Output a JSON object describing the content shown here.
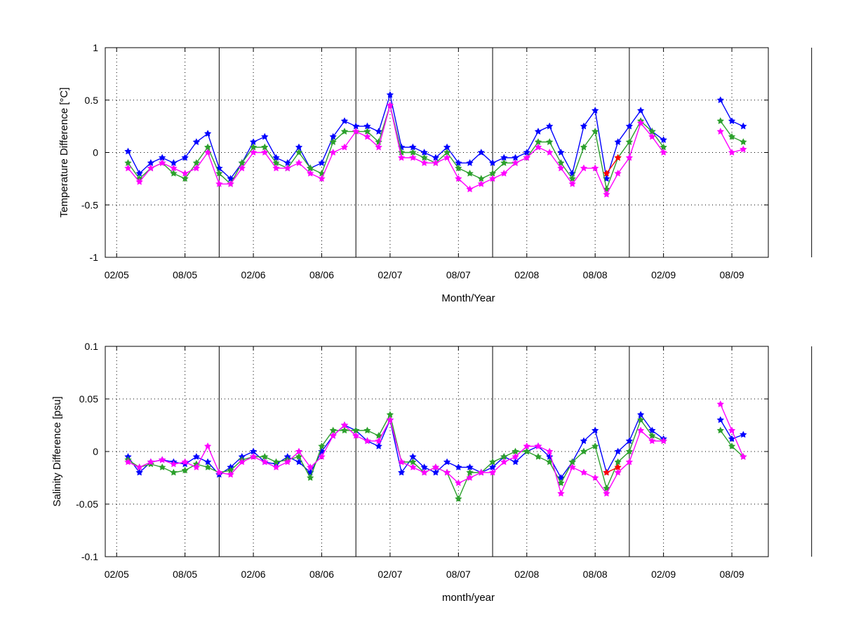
{
  "chart_data": [
    {
      "type": "line",
      "ylabel": "Temperature Difference [°C]",
      "xlabel": "Month/Year",
      "ylim": [
        -1,
        1
      ],
      "yticks": [
        "-1",
        "-0.5",
        "0",
        "0.5",
        "1"
      ],
      "xticks": [
        "02/05",
        "08/05",
        "02/06",
        "08/06",
        "02/07",
        "08/07",
        "02/08",
        "08/08",
        "02/09",
        "08/09"
      ],
      "grid": "dotted",
      "cruise_dividers": [
        "11/05",
        "11/06",
        "11/07",
        "11/08",
        "03/10"
      ],
      "x": [
        "03/05",
        "04/05",
        "05/05",
        "06/05",
        "07/05",
        "08/05",
        "09/05",
        "10/05",
        "11/05",
        "12/05",
        "01/06",
        "02/06",
        "03/06",
        "04/06",
        "05/06",
        "06/06",
        "07/06",
        "08/06",
        "09/06",
        "10/06",
        "11/06",
        "12/06",
        "01/07",
        "02/07",
        "03/07",
        "04/07",
        "05/07",
        "06/07",
        "07/07",
        "08/07",
        "09/07",
        "10/07",
        "11/07",
        "12/07",
        "01/08",
        "02/08",
        "03/08",
        "04/08",
        "05/08",
        "06/08",
        "07/08",
        "08/08",
        "09/08",
        "10/08",
        "11/08",
        "12/08",
        "01/09",
        "02/09",
        "03/09",
        "04/09",
        "05/09",
        "06/09",
        "07/09",
        "08/09",
        "09/09"
      ],
      "series": [
        {
          "color": "#0000ff",
          "marker": "star",
          "values": [
            0.01,
            -0.2,
            -0.1,
            -0.05,
            -0.1,
            -0.05,
            0.1,
            0.18,
            -0.15,
            -0.25,
            -0.1,
            0.1,
            0.15,
            -0.05,
            -0.1,
            0.05,
            -0.15,
            -0.1,
            0.15,
            0.3,
            0.25,
            0.25,
            0.2,
            0.55,
            0.05,
            0.05,
            0.0,
            -0.05,
            0.05,
            -0.1,
            -0.1,
            0.0,
            -0.1,
            -0.05,
            -0.05,
            0.0,
            0.2,
            0.25,
            0.0,
            -0.2,
            0.25,
            0.4,
            -0.25,
            0.1,
            0.25,
            0.4,
            0.2,
            0.12,
            null,
            null,
            null,
            null,
            0.5,
            0.3,
            0.25
          ]
        },
        {
          "color": "#2ca02c",
          "marker": "star",
          "values": [
            -0.1,
            -0.25,
            -0.15,
            -0.1,
            -0.2,
            -0.25,
            -0.1,
            0.05,
            -0.2,
            -0.3,
            -0.1,
            0.05,
            0.05,
            -0.1,
            -0.15,
            0.0,
            -0.15,
            -0.2,
            0.1,
            0.2,
            0.2,
            0.2,
            0.1,
            0.45,
            0.0,
            0.0,
            -0.05,
            -0.1,
            0.0,
            -0.15,
            -0.2,
            -0.25,
            -0.2,
            -0.1,
            -0.1,
            -0.05,
            0.1,
            0.1,
            -0.1,
            -0.25,
            0.05,
            0.2,
            -0.35,
            -0.05,
            0.1,
            0.3,
            0.2,
            0.05,
            null,
            null,
            null,
            null,
            0.3,
            0.15,
            0.1
          ]
        },
        {
          "color": "#ff00ff",
          "marker": "star",
          "values": [
            -0.15,
            -0.28,
            -0.15,
            -0.1,
            -0.15,
            -0.2,
            -0.15,
            0.0,
            -0.3,
            -0.3,
            -0.15,
            0.0,
            0.0,
            -0.15,
            -0.15,
            -0.1,
            -0.2,
            -0.25,
            0.0,
            0.05,
            0.2,
            0.15,
            0.05,
            0.45,
            -0.05,
            -0.05,
            -0.1,
            -0.1,
            -0.05,
            -0.25,
            -0.35,
            -0.3,
            -0.25,
            -0.2,
            -0.1,
            -0.05,
            0.05,
            0.0,
            -0.15,
            -0.3,
            -0.15,
            -0.15,
            -0.4,
            -0.2,
            -0.05,
            0.28,
            0.15,
            0.0,
            null,
            null,
            null,
            null,
            0.2,
            0.0,
            0.03
          ]
        },
        {
          "color": "#ff0000",
          "marker": "star",
          "values": [
            null,
            null,
            null,
            null,
            null,
            null,
            null,
            null,
            null,
            null,
            null,
            null,
            null,
            null,
            null,
            null,
            null,
            null,
            null,
            null,
            null,
            null,
            null,
            null,
            null,
            null,
            null,
            null,
            null,
            null,
            null,
            null,
            null,
            null,
            null,
            null,
            null,
            null,
            null,
            null,
            null,
            null,
            -0.2,
            -0.05,
            null,
            null,
            null,
            null,
            null,
            null,
            null,
            null,
            null,
            null,
            null
          ]
        }
      ]
    },
    {
      "type": "line",
      "ylabel": "Salinity Difference [psu]",
      "xlabel": "month/year",
      "ylim": [
        -0.1,
        0.1
      ],
      "yticks": [
        "-0.1",
        "-0.05",
        "0",
        "0.05",
        "0.1"
      ],
      "xticks": [
        "02/05",
        "08/05",
        "02/06",
        "08/06",
        "02/07",
        "08/07",
        "02/08",
        "08/08",
        "02/09",
        "08/09"
      ],
      "grid": "dotted",
      "cruise_dividers": [
        "11/05",
        "11/06",
        "11/07",
        "11/08",
        "03/10"
      ],
      "x": [
        "03/05",
        "04/05",
        "05/05",
        "06/05",
        "07/05",
        "08/05",
        "09/05",
        "10/05",
        "11/05",
        "12/05",
        "01/06",
        "02/06",
        "03/06",
        "04/06",
        "05/06",
        "06/06",
        "07/06",
        "08/06",
        "09/06",
        "10/06",
        "11/06",
        "12/06",
        "01/07",
        "02/07",
        "03/07",
        "04/07",
        "05/07",
        "06/07",
        "07/07",
        "08/07",
        "09/07",
        "10/07",
        "11/07",
        "12/07",
        "01/08",
        "02/08",
        "03/08",
        "04/08",
        "05/08",
        "06/08",
        "07/08",
        "08/08",
        "09/08",
        "10/08",
        "11/08",
        "12/08",
        "01/09",
        "02/09",
        "03/09",
        "04/09",
        "05/09",
        "06/09",
        "07/09",
        "08/09",
        "09/09"
      ],
      "series": [
        {
          "color": "#0000ff",
          "marker": "star",
          "values": [
            -0.005,
            -0.02,
            -0.01,
            -0.008,
            -0.01,
            -0.012,
            -0.005,
            -0.01,
            -0.022,
            -0.015,
            -0.005,
            0.0,
            -0.01,
            -0.012,
            -0.005,
            -0.01,
            -0.02,
            0.0,
            0.015,
            0.025,
            0.02,
            0.01,
            0.005,
            0.03,
            -0.02,
            -0.005,
            -0.015,
            -0.02,
            -0.01,
            -0.015,
            -0.015,
            -0.02,
            -0.015,
            -0.005,
            -0.01,
            0.0,
            0.005,
            -0.005,
            -0.025,
            -0.01,
            0.01,
            0.02,
            -0.02,
            0.0,
            0.01,
            0.035,
            0.02,
            0.012,
            null,
            null,
            null,
            null,
            0.03,
            0.012,
            0.016
          ]
        },
        {
          "color": "#2ca02c",
          "marker": "star",
          "values": [
            -0.008,
            -0.015,
            -0.012,
            -0.015,
            -0.02,
            -0.018,
            -0.012,
            -0.015,
            -0.02,
            -0.018,
            -0.008,
            -0.005,
            -0.005,
            -0.01,
            -0.008,
            -0.005,
            -0.025,
            0.005,
            0.02,
            0.02,
            0.02,
            0.02,
            0.015,
            0.035,
            -0.01,
            -0.01,
            -0.02,
            -0.015,
            -0.02,
            -0.045,
            -0.02,
            -0.02,
            -0.01,
            -0.005,
            0.0,
            0.0,
            -0.005,
            -0.01,
            -0.03,
            -0.01,
            0.0,
            0.005,
            -0.035,
            -0.01,
            0.0,
            0.03,
            0.015,
            0.01,
            null,
            null,
            null,
            null,
            0.02,
            0.005,
            -0.005
          ]
        },
        {
          "color": "#ff00ff",
          "marker": "star",
          "values": [
            -0.01,
            -0.015,
            -0.01,
            -0.008,
            -0.012,
            -0.01,
            -0.015,
            0.005,
            -0.02,
            -0.022,
            -0.01,
            -0.005,
            -0.01,
            -0.015,
            -0.01,
            0.0,
            -0.015,
            -0.005,
            0.015,
            0.025,
            0.015,
            0.01,
            0.01,
            0.03,
            -0.01,
            -0.015,
            -0.02,
            -0.015,
            -0.02,
            -0.03,
            -0.025,
            -0.02,
            -0.02,
            -0.01,
            -0.005,
            0.005,
            0.005,
            0.0,
            -0.04,
            -0.015,
            -0.02,
            -0.025,
            -0.04,
            -0.02,
            -0.01,
            0.02,
            0.01,
            0.01,
            null,
            null,
            null,
            null,
            0.045,
            0.02,
            -0.005
          ]
        },
        {
          "color": "#ff0000",
          "marker": "star",
          "values": [
            null,
            null,
            null,
            null,
            null,
            null,
            null,
            null,
            null,
            null,
            null,
            null,
            null,
            null,
            null,
            null,
            null,
            null,
            null,
            null,
            null,
            null,
            null,
            null,
            null,
            null,
            null,
            null,
            null,
            null,
            null,
            null,
            null,
            null,
            null,
            null,
            null,
            null,
            null,
            null,
            null,
            null,
            -0.02,
            -0.015,
            null,
            null,
            null,
            null,
            null,
            null,
            null,
            null,
            null,
            null,
            null
          ]
        }
      ]
    }
  ]
}
